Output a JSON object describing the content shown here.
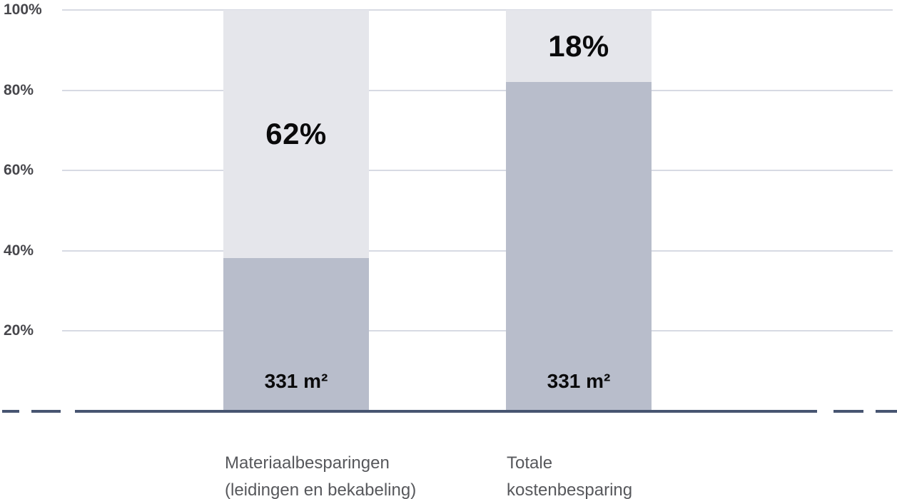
{
  "chart_data": {
    "type": "bar",
    "subtype": "100-percent-stacked-column",
    "title": "",
    "xlabel": "",
    "ylabel": "",
    "ylim": [
      0,
      100
    ],
    "grid": true,
    "legend": "none",
    "categories": [
      {
        "lines": [
          "Materiaalbesparingen",
          "(leidingen en bekabeling)"
        ]
      },
      {
        "lines": [
          "Totale",
          "kostenbesparing"
        ]
      }
    ],
    "series": [
      {
        "name": "base-area-segment",
        "values": [
          38,
          82
        ],
        "labels": [
          "331 m²",
          "331 m²"
        ],
        "color": "#b8bdcb"
      },
      {
        "name": "savings-segment",
        "values": [
          62,
          18
        ],
        "labels": [
          "62%",
          "18%"
        ],
        "color": "#e5e6eb"
      }
    ],
    "y_ticks": [
      {
        "label": "100%",
        "value": 100
      },
      {
        "label": "80%",
        "value": 80
      },
      {
        "label": "60%",
        "value": 60
      },
      {
        "label": "40%",
        "value": 40
      },
      {
        "label": "20%",
        "value": 20
      }
    ],
    "colors": {
      "axis_line": "#475571",
      "gridline": "#d7dae3",
      "tick_text": "#47474c",
      "category_text": "#57585c",
      "value_text": "#0a0a0b",
      "light_segment": "#e5e6eb",
      "dark_segment": "#b8bdcb",
      "background": "#ffffff"
    }
  }
}
